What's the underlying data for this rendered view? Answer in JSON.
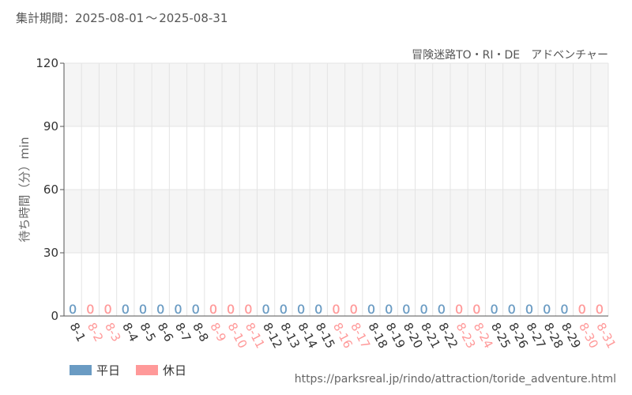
{
  "header": {
    "period_label": "集計期間：",
    "start_date": "2025-08-01",
    "separator": "〜",
    "end_date": "2025-08-31"
  },
  "chart_data": {
    "type": "bar",
    "title": "冒険迷路TO・RI・DE　アドベンチャー",
    "ylabel": "待ち時間（分）min",
    "xlabel": "",
    "ylim": [
      0,
      120
    ],
    "yticks": [
      0,
      30,
      60,
      90,
      120
    ],
    "grid": true,
    "categories": [
      "8-1",
      "8-2",
      "8-3",
      "8-4",
      "8-5",
      "8-6",
      "8-7",
      "8-8",
      "8-9",
      "8-10",
      "8-11",
      "8-12",
      "8-13",
      "8-14",
      "8-15",
      "8-16",
      "8-17",
      "8-18",
      "8-19",
      "8-20",
      "8-21",
      "8-22",
      "8-23",
      "8-24",
      "8-25",
      "8-26",
      "8-27",
      "8-28",
      "8-29",
      "8-30",
      "8-31"
    ],
    "day_type": [
      "weekday",
      "holiday",
      "holiday",
      "weekday",
      "weekday",
      "weekday",
      "weekday",
      "weekday",
      "holiday",
      "holiday",
      "holiday",
      "weekday",
      "weekday",
      "weekday",
      "weekday",
      "holiday",
      "holiday",
      "weekday",
      "weekday",
      "weekday",
      "weekday",
      "weekday",
      "holiday",
      "holiday",
      "weekday",
      "weekday",
      "weekday",
      "weekday",
      "weekday",
      "holiday",
      "holiday"
    ],
    "values": [
      0,
      0,
      0,
      0,
      0,
      0,
      0,
      0,
      0,
      0,
      0,
      0,
      0,
      0,
      0,
      0,
      0,
      0,
      0,
      0,
      0,
      0,
      0,
      0,
      0,
      0,
      0,
      0,
      0,
      0,
      0
    ],
    "legend": [
      {
        "key": "weekday",
        "label": "平日",
        "color": "#6a9bc3"
      },
      {
        "key": "holiday",
        "label": "休日",
        "color": "#ff9999"
      }
    ],
    "legend_position": "bottom-left"
  },
  "source_url": "https://parksreal.jp/rindo/attraction/toride_adventure.html"
}
